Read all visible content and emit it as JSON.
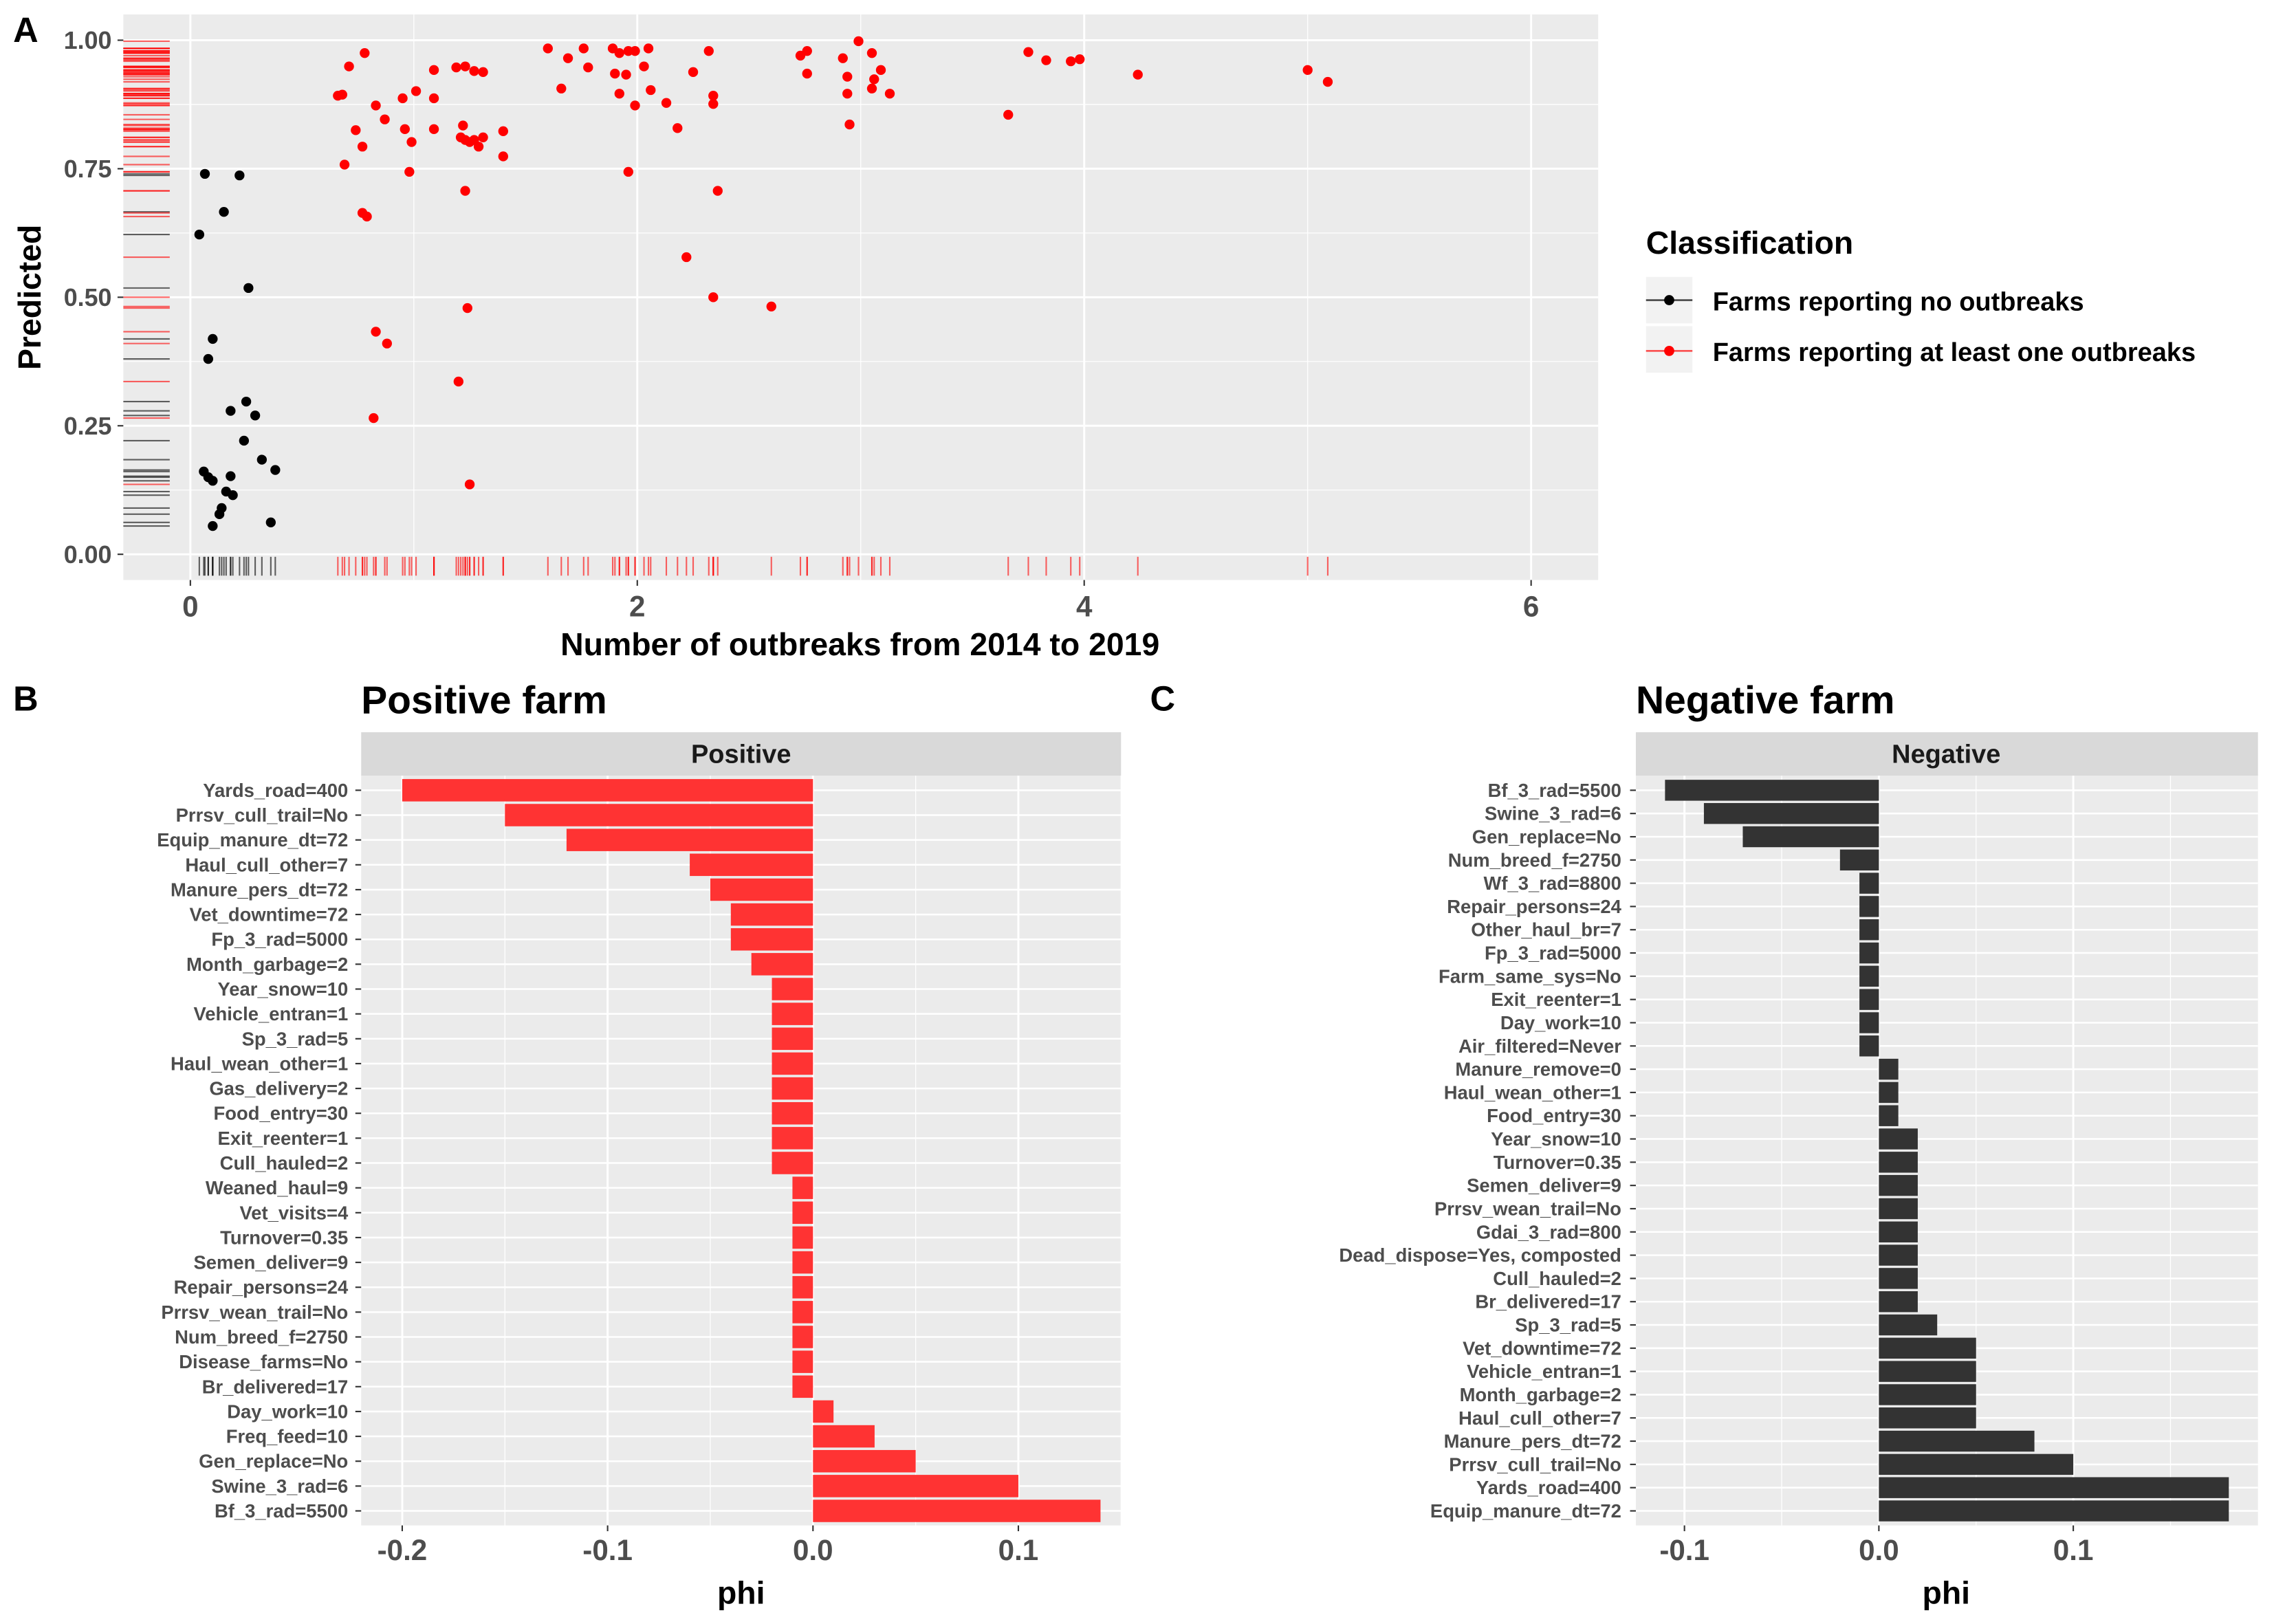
{
  "panel_labels": {
    "a": "A",
    "b": "B",
    "c": "C"
  },
  "colors": {
    "no_outbreak": "#000000",
    "outbreak": "#FF0000",
    "positive_bar": "#FF3333",
    "negative_bar": "#333333",
    "panel_bg": "#EBEBEB",
    "strip_bg": "#D9D9D9"
  },
  "chart_data": [
    {
      "type": "scatter",
      "xlabel": "Number of outbreaks from 2014 to 2019",
      "ylabel": "Predicted",
      "xlim": [
        -0.3,
        6.3
      ],
      "ylim": [
        -0.05,
        1.05
      ],
      "x_ticks": [
        "0",
        "2",
        "4",
        "6"
      ],
      "y_ticks": [
        "0.00",
        "0.25",
        "0.50",
        "0.75",
        "1.00"
      ],
      "grid": true,
      "rug": "left and bottom",
      "legend": {
        "title": "Classification",
        "placement": "right"
      },
      "series": [
        {
          "name": "Farms reporting no outbreaks",
          "color": "#000000",
          "points": [
            [
              0.065,
              0.74
            ],
            [
              0.22,
              0.737
            ],
            [
              0.15,
              0.666
            ],
            [
              0.04,
              0.622
            ],
            [
              0.26,
              0.518
            ],
            [
              0.1,
              0.419
            ],
            [
              0.08,
              0.38
            ],
            [
              0.18,
              0.279
            ],
            [
              0.25,
              0.297
            ],
            [
              0.29,
              0.27
            ],
            [
              0.24,
              0.221
            ],
            [
              0.32,
              0.184
            ],
            [
              0.06,
              0.161
            ],
            [
              0.08,
              0.15
            ],
            [
              0.1,
              0.143
            ],
            [
              0.18,
              0.152
            ],
            [
              0.16,
              0.122
            ],
            [
              0.19,
              0.115
            ],
            [
              0.14,
              0.09
            ],
            [
              0.13,
              0.078
            ],
            [
              0.1,
              0.055
            ],
            [
              0.38,
              0.164
            ],
            [
              0.36,
              0.062
            ]
          ]
        },
        {
          "name": "Farms reporting at least one outbreaks",
          "color": "#FF0000",
          "points": [
            [
              0.66,
              0.892
            ],
            [
              0.68,
              0.894
            ],
            [
              0.71,
              0.949
            ],
            [
              0.78,
              0.975
            ],
            [
              0.74,
              0.825
            ],
            [
              0.77,
              0.793
            ],
            [
              0.83,
              0.873
            ],
            [
              0.87,
              0.846
            ],
            [
              0.69,
              0.758
            ],
            [
              0.77,
              0.664
            ],
            [
              0.79,
              0.657
            ],
            [
              0.95,
              0.887
            ],
            [
              1.01,
              0.901
            ],
            [
              1.09,
              0.942
            ],
            [
              1.09,
              0.887
            ],
            [
              0.96,
              0.827
            ],
            [
              1.09,
              0.827
            ],
            [
              0.99,
              0.802
            ],
            [
              0.98,
              0.744
            ],
            [
              1.19,
              0.947
            ],
            [
              1.23,
              0.949
            ],
            [
              1.27,
              0.94
            ],
            [
              1.31,
              0.938
            ],
            [
              1.22,
              0.834
            ],
            [
              1.21,
              0.811
            ],
            [
              1.23,
              0.806
            ],
            [
              1.25,
              0.802
            ],
            [
              1.27,
              0.806
            ],
            [
              1.29,
              0.793
            ],
            [
              1.31,
              0.811
            ],
            [
              1.23,
              0.707
            ],
            [
              1.4,
              0.823
            ],
            [
              1.4,
              0.774
            ],
            [
              1.6,
              0.984
            ],
            [
              1.69,
              0.965
            ],
            [
              1.66,
              0.906
            ],
            [
              1.76,
              0.984
            ],
            [
              1.78,
              0.947
            ],
            [
              1.89,
              0.984
            ],
            [
              1.9,
              0.935
            ],
            [
              1.92,
              0.975
            ],
            [
              1.96,
              0.979
            ],
            [
              1.95,
              0.933
            ],
            [
              1.99,
              0.979
            ],
            [
              2.05,
              0.984
            ],
            [
              2.03,
              0.949
            ],
            [
              1.92,
              0.896
            ],
            [
              1.99,
              0.873
            ],
            [
              2.06,
              0.903
            ],
            [
              2.13,
              0.878
            ],
            [
              2.18,
              0.829
            ],
            [
              2.25,
              0.938
            ],
            [
              2.32,
              0.979
            ],
            [
              2.34,
              0.892
            ],
            [
              2.34,
              0.876
            ],
            [
              1.96,
              0.744
            ],
            [
              2.36,
              0.707
            ],
            [
              2.22,
              0.578
            ],
            [
              2.34,
              0.5
            ],
            [
              2.6,
              0.482
            ],
            [
              0.83,
              0.433
            ],
            [
              0.88,
              0.41
            ],
            [
              1.2,
              0.336
            ],
            [
              1.24,
              0.479
            ],
            [
              0.82,
              0.265
            ],
            [
              1.25,
              0.136
            ],
            [
              2.73,
              0.97
            ],
            [
              2.76,
              0.979
            ],
            [
              2.76,
              0.935
            ],
            [
              2.92,
              0.965
            ],
            [
              2.94,
              0.929
            ],
            [
              2.94,
              0.896
            ],
            [
              2.99,
              0.998
            ],
            [
              3.05,
              0.975
            ],
            [
              3.06,
              0.924
            ],
            [
              3.05,
              0.906
            ],
            [
              3.09,
              0.942
            ],
            [
              3.13,
              0.896
            ],
            [
              2.95,
              0.836
            ],
            [
              3.66,
              0.855
            ],
            [
              3.75,
              0.977
            ],
            [
              3.83,
              0.961
            ],
            [
              3.94,
              0.959
            ],
            [
              3.98,
              0.963
            ],
            [
              4.24,
              0.933
            ],
            [
              5.0,
              0.942
            ],
            [
              5.09,
              0.919
            ]
          ]
        }
      ]
    },
    {
      "type": "bar",
      "orientation": "horizontal",
      "title": "Positive farm",
      "strip": "Positive",
      "xlabel": "phi",
      "xlim": [
        -0.22,
        0.15
      ],
      "x_ticks": [
        "-0.2",
        "-0.1",
        "0.0",
        "0.1"
      ],
      "color": "#FF3333",
      "categories": [
        "Yards_road=400",
        "Prrsv_cull_trail=No",
        "Equip_manure_dt=72",
        "Haul_cull_other=7",
        "Manure_pers_dt=72",
        "Vet_downtime=72",
        "Fp_3_rad=5000",
        "Month_garbage=2",
        "Year_snow=10",
        "Vehicle_entran=1",
        "Sp_3_rad=5",
        "Haul_wean_other=1",
        "Gas_delivery=2",
        "Food_entry=30",
        "Exit_reenter=1",
        "Cull_hauled=2",
        "Weaned_haul=9",
        "Vet_visits=4",
        "Turnover=0.35",
        "Semen_deliver=9",
        "Repair_persons=24",
        "Prrsv_wean_trail=No",
        "Num_breed_f=2750",
        "Disease_farms=No",
        "Br_delivered=17",
        "Day_work=10",
        "Freq_feed=10",
        "Gen_replace=No",
        "Swine_3_rad=6",
        "Bf_3_rad=5500"
      ],
      "values": [
        -0.2,
        -0.15,
        -0.12,
        -0.06,
        -0.05,
        -0.04,
        -0.04,
        -0.03,
        -0.02,
        -0.02,
        -0.02,
        -0.02,
        -0.02,
        -0.02,
        -0.02,
        -0.02,
        -0.01,
        -0.01,
        -0.01,
        -0.01,
        -0.01,
        -0.01,
        -0.01,
        -0.01,
        -0.01,
        0.01,
        0.03,
        0.05,
        0.1,
        0.14
      ]
    },
    {
      "type": "bar",
      "orientation": "horizontal",
      "title": "Negative farm",
      "strip": "Negative",
      "xlabel": "phi",
      "xlim": [
        -0.125,
        0.195
      ],
      "x_ticks": [
        "-0.1",
        "0.0",
        "0.1"
      ],
      "color": "#333333",
      "categories": [
        "Bf_3_rad=5500",
        "Swine_3_rad=6",
        "Gen_replace=No",
        "Num_breed_f=2750",
        "Wf_3_rad=8800",
        "Repair_persons=24",
        "Other_haul_br=7",
        "Fp_3_rad=5000",
        "Farm_same_sys=No",
        "Exit_reenter=1",
        "Day_work=10",
        "Air_filtered=Never",
        "Manure_remove=0",
        "Haul_wean_other=1",
        "Food_entry=30",
        "Year_snow=10",
        "Turnover=0.35",
        "Semen_deliver=9",
        "Prrsv_wean_trail=No",
        "Gdai_3_rad=800",
        "Dead_dispose=Yes, composted",
        "Cull_hauled=2",
        "Br_delivered=17",
        "Sp_3_rad=5",
        "Vet_downtime=72",
        "Vehicle_entran=1",
        "Month_garbage=2",
        "Haul_cull_other=7",
        "Manure_pers_dt=72",
        "Prrsv_cull_trail=No",
        "Yards_road=400",
        "Equip_manure_dt=72"
      ],
      "values": [
        -0.11,
        -0.09,
        -0.07,
        -0.02,
        -0.01,
        -0.01,
        -0.01,
        -0.01,
        -0.01,
        -0.01,
        -0.01,
        -0.01,
        0.01,
        0.01,
        0.01,
        0.02,
        0.02,
        0.02,
        0.02,
        0.02,
        0.02,
        0.02,
        0.02,
        0.03,
        0.05,
        0.05,
        0.05,
        0.05,
        0.08,
        0.1,
        0.18,
        0.18
      ]
    }
  ]
}
